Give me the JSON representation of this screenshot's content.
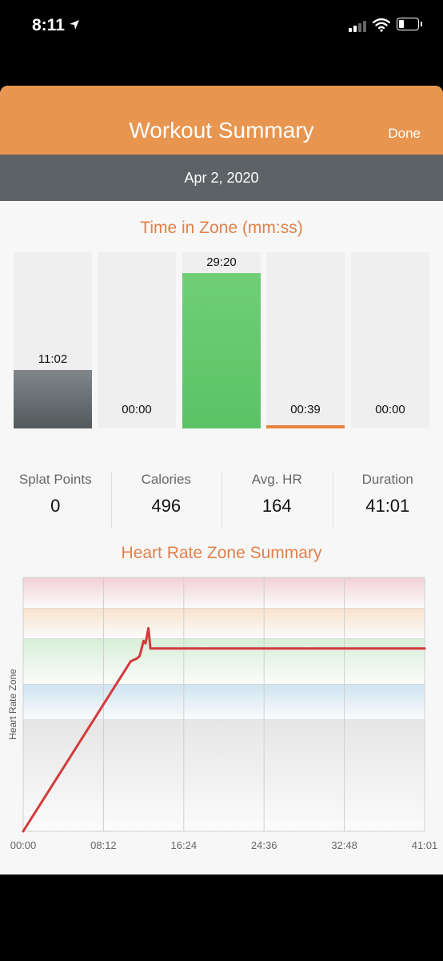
{
  "status_bar": {
    "time": "8:11"
  },
  "header": {
    "title": "Workout Summary",
    "done_label": "Done"
  },
  "date": "Apr 2, 2020",
  "time_in_zone": {
    "title": "Time in Zone (mm:ss)",
    "zones": [
      {
        "value": "11:02",
        "fraction": 0.33,
        "color": "#6d7275"
      },
      {
        "value": "00:00",
        "fraction": 0.0,
        "color": "#6d7275"
      },
      {
        "value": "29:20",
        "fraction": 0.88,
        "color": "#5cc266"
      },
      {
        "value": "00:39",
        "fraction": 0.02,
        "color": "#e8833a"
      },
      {
        "value": "00:00",
        "fraction": 0.0,
        "color": "#d94a4a"
      }
    ]
  },
  "stats": [
    {
      "label": "Splat Points",
      "value": "0"
    },
    {
      "label": "Calories",
      "value": "496"
    },
    {
      "label": "Avg. HR",
      "value": "164"
    },
    {
      "label": "Duration",
      "value": "41:01"
    }
  ],
  "hr_chart": {
    "title": "Heart Rate Zone Summary",
    "y_axis_label": "Heart Rate Zone",
    "x_tick_labels": [
      "00:00",
      "08:12",
      "16:24",
      "24:36",
      "32:48",
      "41:01"
    ],
    "line_color": "#d33a3a"
  },
  "chart_data": {
    "type": "line",
    "title": "Heart Rate Zone Summary",
    "xlabel": "",
    "ylabel": "Heart Rate Zone",
    "x_tick_labels": [
      "00:00",
      "08:12",
      "16:24",
      "24:36",
      "32:48",
      "41:01"
    ],
    "xlim": [
      0,
      41.02
    ],
    "ylim": [
      0,
      100
    ],
    "bands": [
      {
        "from": 0,
        "to": 44,
        "color": "#e6e6e6"
      },
      {
        "from": 44,
        "to": 58,
        "color": "#cfe3f1"
      },
      {
        "from": 58,
        "to": 76,
        "color": "#d7efd7"
      },
      {
        "from": 76,
        "to": 88,
        "color": "#f8e2cc"
      },
      {
        "from": 88,
        "to": 100,
        "color": "#f2d0d4"
      }
    ],
    "series": [
      {
        "x": [
          0,
          11.0,
          11.6,
          11.9,
          12.1,
          12.3,
          12.5,
          12.8,
          13.0,
          41.02
        ],
        "y": [
          0,
          67,
          68,
          69,
          72,
          75,
          74,
          80,
          72,
          72
        ]
      }
    ]
  }
}
